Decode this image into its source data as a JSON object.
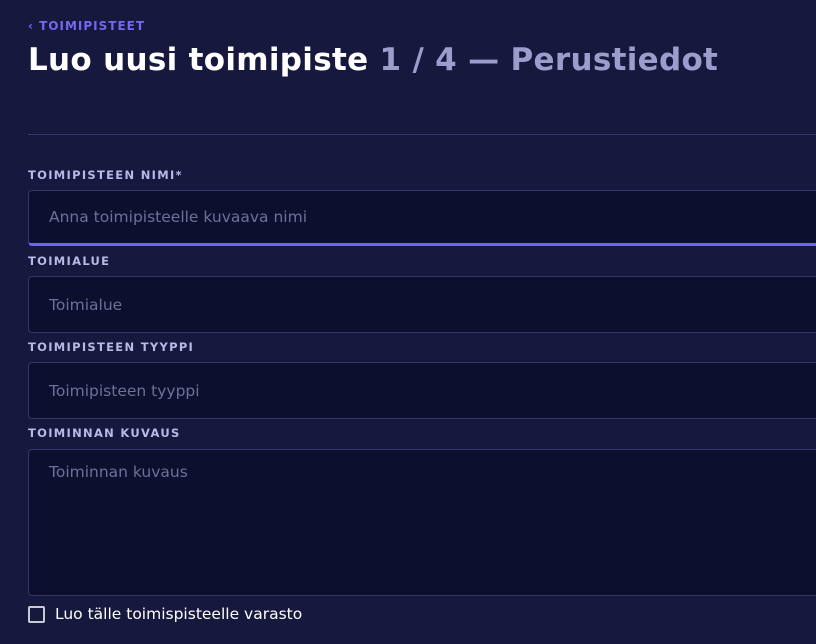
{
  "breadcrumb": {
    "label": "TOIMIPISTEET",
    "icon": "chevron-left-icon"
  },
  "title": {
    "main": "Luo uusi toimipiste",
    "step": "1 / 4 — Perustiedot"
  },
  "fields": [
    {
      "label": "TOIMIPISTEEN NIMI*",
      "placeholder": "Anna toimipisteelle kuvaava nimi"
    },
    {
      "label": "TOIMIALUE",
      "placeholder": "Toimialue"
    },
    {
      "label": "TOIMIPISTEEN TYYPPI",
      "placeholder": "Toimipisteen tyyppi"
    },
    {
      "label": "TOIMINNAN KUVAUS",
      "placeholder": "Toiminnan kuvaus"
    }
  ],
  "checkbox": {
    "label": "Luo tälle toimispisteelle varasto",
    "checked": false
  },
  "colors": {
    "background": "#16183e",
    "input": "#0d0f2f",
    "accent": "#6e63f5"
  }
}
